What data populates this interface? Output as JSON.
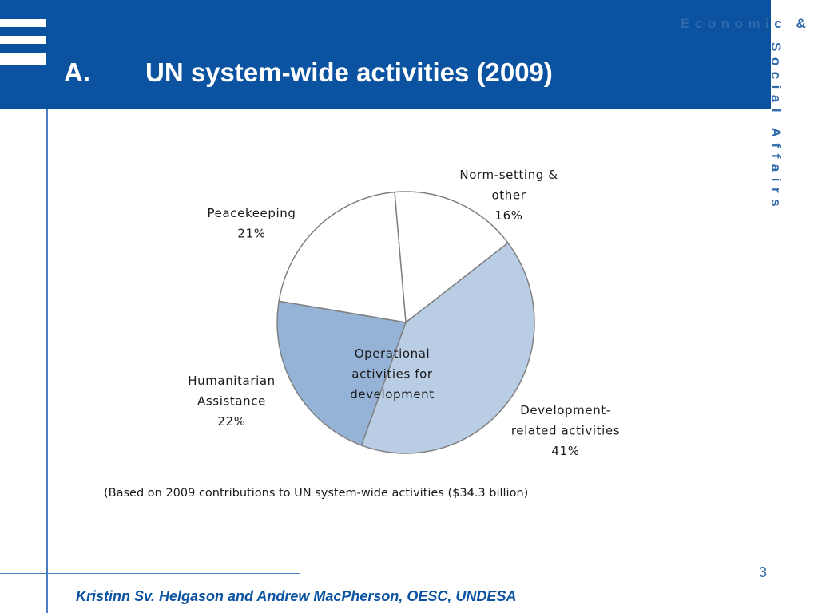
{
  "slide": {
    "title_letter": "A.",
    "title_text": "UN system-wide activities (2009)",
    "brand_line1": "Economic &",
    "brand_line2": "Social Affairs",
    "page_number": "3",
    "footer": "Kristinn Sv. Helgason and Andrew MacPherson, OESC, UNDESA"
  },
  "chart_data": {
    "type": "pie",
    "title": "",
    "categories": [
      "Norm-setting & other",
      "Development-related activities",
      "Humanitarian Assistance",
      "Peacekeeping"
    ],
    "values": [
      16,
      41,
      22,
      21
    ],
    "unit": "%",
    "slices": [
      {
        "name": "Norm-setting & other",
        "value": 16,
        "label_lines": [
          "Norm-setting &",
          "other",
          "16%"
        ],
        "color": "#ffffff"
      },
      {
        "name": "Development-related activities",
        "value": 41,
        "label_lines": [
          "Development-",
          "related activities",
          "41%"
        ],
        "color": "#b9cde5"
      },
      {
        "name": "Humanitarian Assistance",
        "value": 22,
        "label_lines": [
          "Humanitarian",
          "Assistance",
          "22%"
        ],
        "color": "#95b3d7"
      },
      {
        "name": "Peacekeeping",
        "value": 21,
        "label_lines": [
          "Peacekeeping",
          "21%"
        ],
        "color": "#ffffff"
      }
    ],
    "annotation_lines": [
      "Operational",
      "activities for",
      "development"
    ],
    "note": "(Based on 2009 contributions to UN system-wide activities ($34.3 billion)"
  },
  "colors": {
    "header": "#0b52a0",
    "brand_text": "#2f6aad",
    "slice_outline": "#808080"
  }
}
